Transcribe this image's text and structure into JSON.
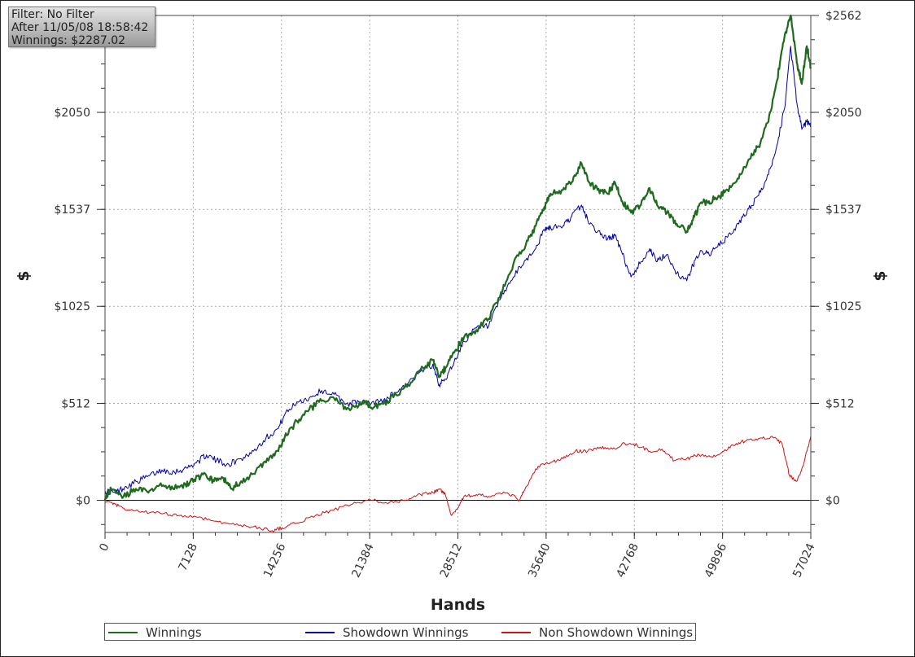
{
  "info": {
    "filter": "Filter: No Filter",
    "after": "After 11/05/08 18:58:42",
    "winnings": "Winnings: $2287.02"
  },
  "chart_data": {
    "type": "line",
    "xlabel": "Hands",
    "ylabel": "$",
    "xlim": [
      0,
      57024
    ],
    "ylim": [
      -170,
      2562
    ],
    "x_ticks": [
      0,
      7128,
      14256,
      21384,
      28512,
      35640,
      42768,
      49896,
      57024
    ],
    "y_ticks": [
      0,
      512,
      1025,
      1537,
      2050,
      2562
    ],
    "y_tick_labels": [
      "$0",
      "$512",
      "$1025",
      "$1537",
      "$2050",
      "$2562"
    ],
    "grid": true,
    "legend_position": "bottom",
    "zero_line": true,
    "series": [
      {
        "name": "Winnings",
        "color": "#1e6b1e",
        "points": [
          [
            0,
            0
          ],
          [
            500,
            60
          ],
          [
            1500,
            20
          ],
          [
            2500,
            60
          ],
          [
            3500,
            40
          ],
          [
            4500,
            90
          ],
          [
            5500,
            60
          ],
          [
            6500,
            85
          ],
          [
            7200,
            110
          ],
          [
            8100,
            140
          ],
          [
            8800,
            100
          ],
          [
            9500,
            120
          ],
          [
            10200,
            60
          ],
          [
            11000,
            100
          ],
          [
            12000,
            140
          ],
          [
            13000,
            200
          ],
          [
            14000,
            260
          ],
          [
            14500,
            330
          ],
          [
            15500,
            420
          ],
          [
            16500,
            480
          ],
          [
            17500,
            525
          ],
          [
            18500,
            540
          ],
          [
            19500,
            480
          ],
          [
            20500,
            500
          ],
          [
            21000,
            520
          ],
          [
            21500,
            490
          ],
          [
            22500,
            510
          ],
          [
            23500,
            560
          ],
          [
            24500,
            610
          ],
          [
            25500,
            690
          ],
          [
            26500,
            740
          ],
          [
            27000,
            650
          ],
          [
            27500,
            700
          ],
          [
            28200,
            780
          ],
          [
            29000,
            860
          ],
          [
            30000,
            900
          ],
          [
            31000,
            960
          ],
          [
            32000,
            1100
          ],
          [
            33000,
            1250
          ],
          [
            34000,
            1350
          ],
          [
            34800,
            1450
          ],
          [
            35500,
            1550
          ],
          [
            36000,
            1620
          ],
          [
            37000,
            1640
          ],
          [
            37700,
            1680
          ],
          [
            38500,
            1780
          ],
          [
            39000,
            1690
          ],
          [
            39800,
            1640
          ],
          [
            40600,
            1620
          ],
          [
            41200,
            1680
          ],
          [
            41800,
            1580
          ],
          [
            42500,
            1520
          ],
          [
            43300,
            1560
          ],
          [
            44000,
            1650
          ],
          [
            44600,
            1560
          ],
          [
            45400,
            1520
          ],
          [
            46200,
            1460
          ],
          [
            47000,
            1420
          ],
          [
            47500,
            1480
          ],
          [
            48100,
            1570
          ],
          [
            48800,
            1580
          ],
          [
            49500,
            1600
          ],
          [
            50300,
            1640
          ],
          [
            51200,
            1700
          ],
          [
            52000,
            1800
          ],
          [
            52800,
            1870
          ],
          [
            53600,
            2000
          ],
          [
            54300,
            2220
          ],
          [
            54900,
            2450
          ],
          [
            55400,
            2562
          ],
          [
            55900,
            2310
          ],
          [
            56300,
            2200
          ],
          [
            56700,
            2400
          ],
          [
            57024,
            2290
          ]
        ]
      },
      {
        "name": "Showdown Winnings",
        "color": "#0000a6",
        "points": [
          [
            0,
            50
          ],
          [
            800,
            40
          ],
          [
            1600,
            70
          ],
          [
            2600,
            100
          ],
          [
            3600,
            130
          ],
          [
            4600,
            160
          ],
          [
            5600,
            150
          ],
          [
            6600,
            170
          ],
          [
            7400,
            200
          ],
          [
            8200,
            240
          ],
          [
            9000,
            210
          ],
          [
            10000,
            190
          ],
          [
            11000,
            220
          ],
          [
            12000,
            260
          ],
          [
            13000,
            330
          ],
          [
            14000,
            380
          ],
          [
            14500,
            450
          ],
          [
            15500,
            520
          ],
          [
            16500,
            540
          ],
          [
            17500,
            580
          ],
          [
            18500,
            560
          ],
          [
            19500,
            510
          ],
          [
            20500,
            520
          ],
          [
            21500,
            510
          ],
          [
            22500,
            530
          ],
          [
            23500,
            570
          ],
          [
            24500,
            620
          ],
          [
            25500,
            680
          ],
          [
            26500,
            720
          ],
          [
            27000,
            610
          ],
          [
            27500,
            640
          ],
          [
            28200,
            730
          ],
          [
            29000,
            840
          ],
          [
            30000,
            910
          ],
          [
            31000,
            920
          ],
          [
            32000,
            1070
          ],
          [
            33000,
            1180
          ],
          [
            34000,
            1270
          ],
          [
            34800,
            1330
          ],
          [
            35500,
            1430
          ],
          [
            36000,
            1440
          ],
          [
            37000,
            1450
          ],
          [
            37700,
            1500
          ],
          [
            38500,
            1560
          ],
          [
            39000,
            1480
          ],
          [
            39800,
            1420
          ],
          [
            40600,
            1380
          ],
          [
            41200,
            1400
          ],
          [
            41800,
            1300
          ],
          [
            42500,
            1180
          ],
          [
            43300,
            1260
          ],
          [
            44000,
            1330
          ],
          [
            44600,
            1260
          ],
          [
            45400,
            1300
          ],
          [
            46200,
            1200
          ],
          [
            47000,
            1160
          ],
          [
            47500,
            1240
          ],
          [
            48100,
            1320
          ],
          [
            48800,
            1300
          ],
          [
            49500,
            1340
          ],
          [
            50300,
            1390
          ],
          [
            51200,
            1460
          ],
          [
            52000,
            1540
          ],
          [
            52800,
            1610
          ],
          [
            53600,
            1720
          ],
          [
            54300,
            1880
          ],
          [
            54900,
            2070
          ],
          [
            55400,
            2400
          ],
          [
            55900,
            2100
          ],
          [
            56300,
            1960
          ],
          [
            56700,
            2000
          ],
          [
            57024,
            1980
          ]
        ]
      },
      {
        "name": "Non Showdown Winnings",
        "color": "#d01212",
        "points": [
          [
            0,
            -10
          ],
          [
            800,
            -20
          ],
          [
            1600,
            -50
          ],
          [
            3000,
            -60
          ],
          [
            4500,
            -70
          ],
          [
            6000,
            -80
          ],
          [
            7500,
            -90
          ],
          [
            9000,
            -110
          ],
          [
            10500,
            -130
          ],
          [
            12000,
            -140
          ],
          [
            13500,
            -160
          ],
          [
            14300,
            -145
          ],
          [
            15500,
            -120
          ],
          [
            17000,
            -80
          ],
          [
            18500,
            -50
          ],
          [
            20000,
            -20
          ],
          [
            21500,
            0
          ],
          [
            23000,
            -10
          ],
          [
            24500,
            0
          ],
          [
            25500,
            30
          ],
          [
            26500,
            40
          ],
          [
            27000,
            60
          ],
          [
            27500,
            30
          ],
          [
            28000,
            -80
          ],
          [
            28500,
            -40
          ],
          [
            29000,
            20
          ],
          [
            30000,
            30
          ],
          [
            31000,
            20
          ],
          [
            32500,
            40
          ],
          [
            33500,
            0
          ],
          [
            34000,
            70
          ],
          [
            35000,
            180
          ],
          [
            36000,
            200
          ],
          [
            37000,
            220
          ],
          [
            38000,
            260
          ],
          [
            39000,
            260
          ],
          [
            40000,
            280
          ],
          [
            41000,
            270
          ],
          [
            42000,
            300
          ],
          [
            43000,
            290
          ],
          [
            44000,
            260
          ],
          [
            45000,
            270
          ],
          [
            46000,
            210
          ],
          [
            47000,
            220
          ],
          [
            48000,
            240
          ],
          [
            49000,
            230
          ],
          [
            50000,
            260
          ],
          [
            51000,
            300
          ],
          [
            52000,
            320
          ],
          [
            53000,
            330
          ],
          [
            54000,
            330
          ],
          [
            54700,
            300
          ],
          [
            55300,
            130
          ],
          [
            55900,
            100
          ],
          [
            56400,
            180
          ],
          [
            57024,
            340
          ]
        ]
      }
    ]
  }
}
